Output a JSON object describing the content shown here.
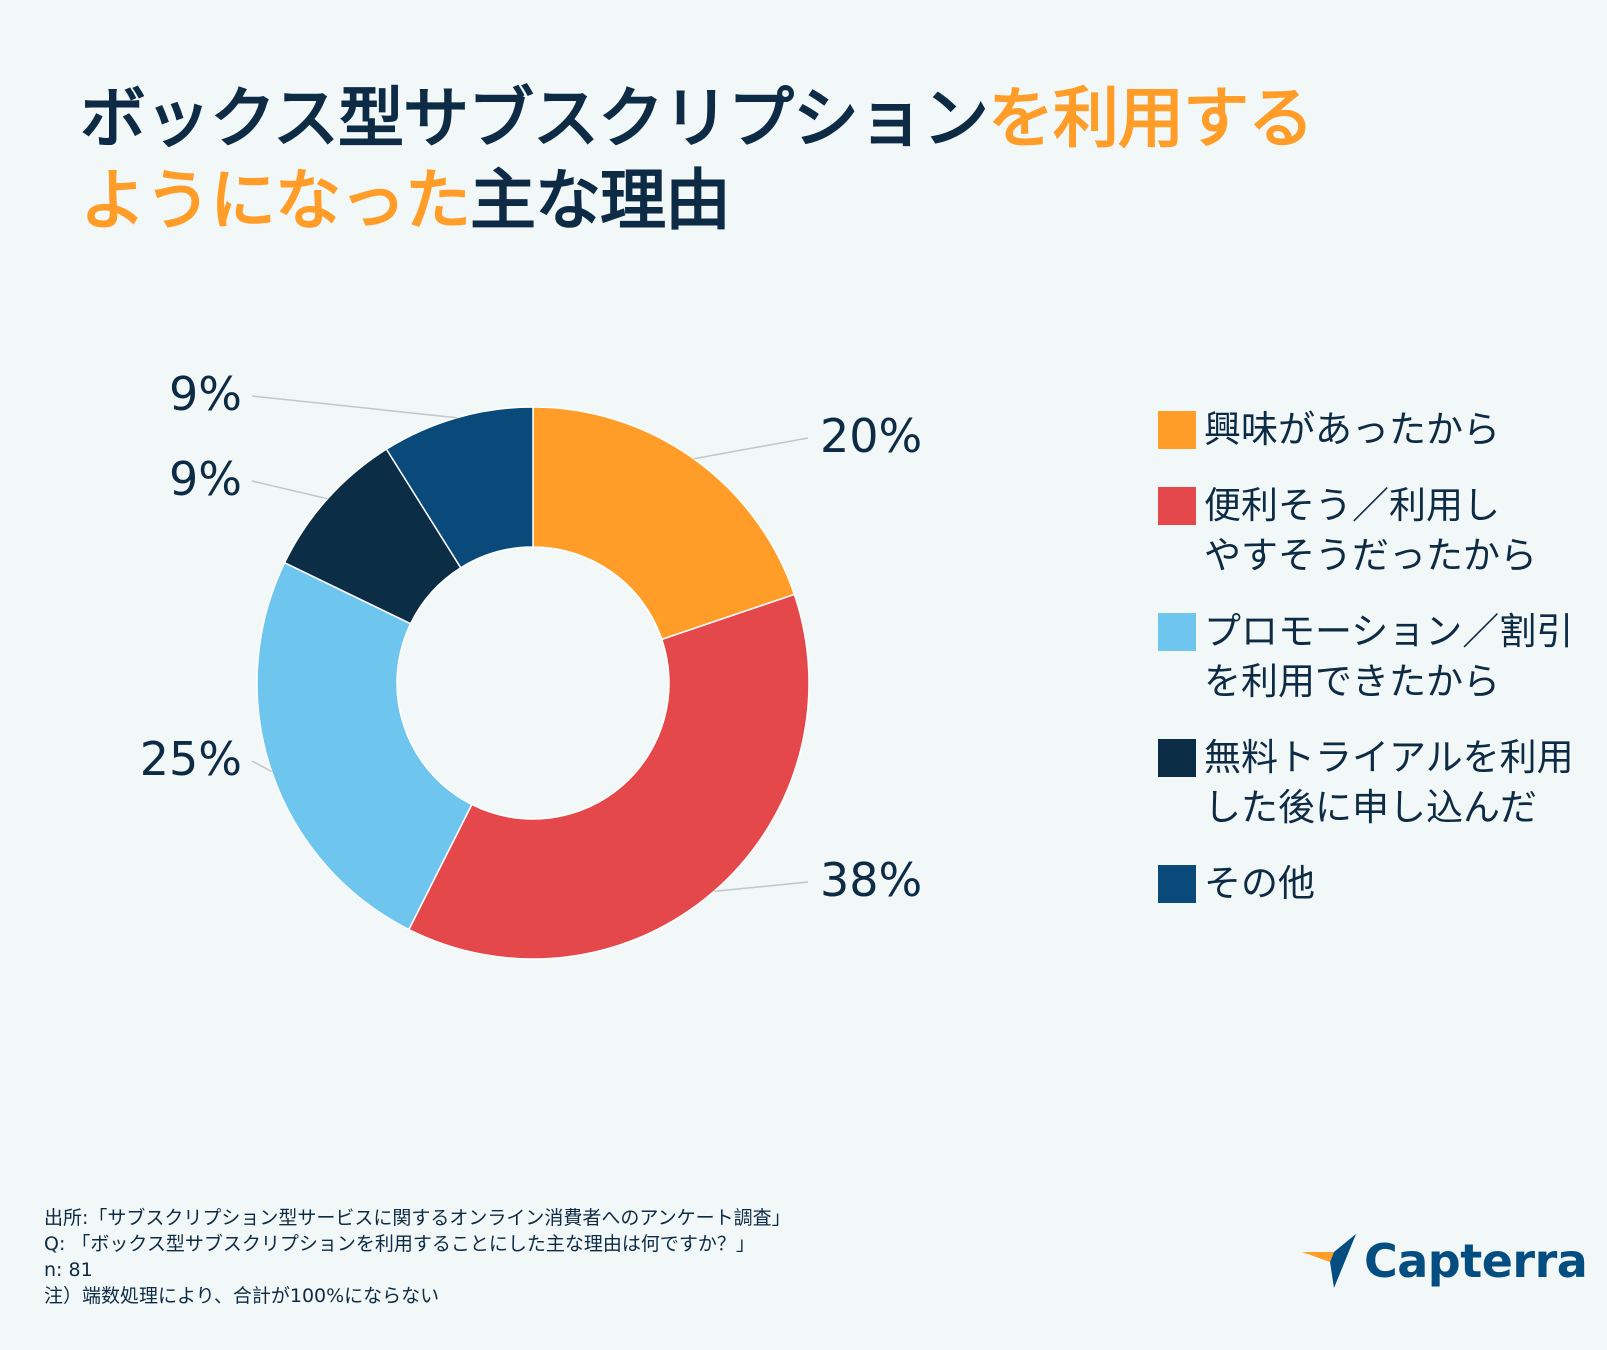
{
  "title": {
    "part1": "ボックス型サブスクリプション",
    "part2": "を利用する",
    "part3": "ようになった",
    "part4": "主な理由"
  },
  "colors": {
    "orange": "#ff9d28",
    "red": "#e5484b",
    "light_blue": "#6ec6ee",
    "navy": "#0b2d45",
    "blue": "#0a4a7b",
    "text": "#0d2b45"
  },
  "chart_data": {
    "type": "pie",
    "donut": true,
    "title": "ボックス型サブスクリプションを利用するようになった主な理由",
    "categories": [
      "興味があったから",
      "便利そう／利用しやすそうだったから",
      "プロモーション／割引を利用できたから",
      "無料トライアルを利用した後に申し込んだ",
      "その他"
    ],
    "values": [
      20,
      38,
      25,
      9,
      9
    ],
    "data_labels": [
      "20%",
      "38%",
      "25%",
      "9%",
      "9%"
    ],
    "series_colors": [
      "#ff9d28",
      "#e5484b",
      "#6ec6ee",
      "#0b2d45",
      "#0a4a7b"
    ],
    "legend_position": "right"
  },
  "legend": [
    {
      "label": "興味があったから",
      "color": "#ff9d28"
    },
    {
      "label": "便利そう／利用し\nやすそうだったから",
      "color": "#e5484b"
    },
    {
      "label": "プロモーション／割引\nを利用できたから",
      "color": "#6ec6ee"
    },
    {
      "label": "無料トライアルを利用\nした後に申し込んだ",
      "color": "#0b2d45"
    },
    {
      "label": "その他",
      "color": "#0a4a7b"
    }
  ],
  "footer": {
    "source": "出所:「サブスクリプション型サービスに関するオンライン消費者へのアンケート調査」",
    "question": "Q: 「ボックス型サブスクリプションを利用することにした主な理由は何ですか？」",
    "n": "n: 81",
    "note": "注）端数処理により、合計が100%にならない"
  },
  "logo": {
    "text": "Capterra"
  }
}
